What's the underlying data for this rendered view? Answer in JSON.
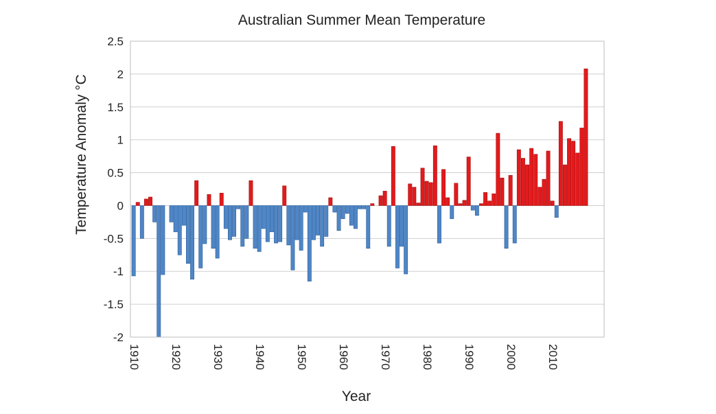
{
  "chart_data": {
    "type": "bar",
    "title": "Australian Summer Mean Temperature",
    "xlabel": "Year",
    "ylabel": "Temperature Anomaly °C",
    "ylim": [
      -2,
      2.5
    ],
    "yticks": [
      2.5,
      2,
      1.5,
      1,
      0.5,
      0,
      -0.5,
      -1,
      -1.5,
      -2
    ],
    "ytick_labels": [
      "2.5",
      "2",
      "1.5",
      "1",
      "0.5",
      "0",
      "-0.5",
      "-1",
      "-1.5",
      "-2"
    ],
    "xtick_labels": [
      "1910",
      "1920",
      "1930",
      "1940",
      "1950",
      "1960",
      "1970",
      "1980",
      "1990",
      "2000",
      "2010"
    ],
    "grid": true,
    "colors": {
      "positive": "#e31a1c",
      "negative": "#4f86c6"
    },
    "years": [
      1910,
      1911,
      1912,
      1913,
      1914,
      1915,
      1916,
      1917,
      1918,
      1919,
      1920,
      1921,
      1922,
      1923,
      1924,
      1925,
      1926,
      1927,
      1928,
      1929,
      1930,
      1931,
      1932,
      1933,
      1934,
      1935,
      1936,
      1937,
      1938,
      1939,
      1940,
      1941,
      1942,
      1943,
      1944,
      1945,
      1946,
      1947,
      1948,
      1949,
      1950,
      1951,
      1952,
      1953,
      1954,
      1955,
      1956,
      1957,
      1958,
      1959,
      1960,
      1961,
      1962,
      1963,
      1964,
      1965,
      1966,
      1967,
      1968,
      1969,
      1970,
      1971,
      1972,
      1973,
      1974,
      1975,
      1976,
      1977,
      1978,
      1979,
      1980,
      1981,
      1982,
      1983,
      1984,
      1985,
      1986,
      1987,
      1988,
      1989,
      1990,
      1991,
      1992,
      1993,
      1994,
      1995,
      1996,
      1997,
      1998,
      1999,
      2000,
      2001,
      2002,
      2003,
      2004,
      2005,
      2006,
      2007,
      2008,
      2009,
      2010,
      2011,
      2012,
      2013,
      2014,
      2015,
      2016,
      2017,
      2018,
      2019
    ],
    "values": [
      -1.07,
      0.05,
      -0.5,
      0.1,
      0.13,
      -0.25,
      -2.0,
      -1.05,
      0.0,
      -0.25,
      -0.4,
      -0.75,
      -0.3,
      -0.88,
      -1.12,
      0.38,
      -0.95,
      -0.58,
      0.17,
      -0.65,
      -0.8,
      0.19,
      -0.35,
      -0.52,
      -0.47,
      -0.05,
      -0.62,
      -0.5,
      0.38,
      -0.65,
      -0.7,
      -0.35,
      -0.55,
      -0.4,
      -0.57,
      -0.55,
      0.3,
      -0.6,
      -0.98,
      -0.52,
      -0.68,
      -0.1,
      -1.15,
      -0.52,
      -0.45,
      -0.62,
      -0.47,
      0.12,
      -0.1,
      -0.38,
      -0.2,
      -0.12,
      -0.3,
      -0.35,
      -0.05,
      -0.05,
      -0.65,
      0.03,
      0.0,
      0.15,
      0.22,
      -0.62,
      0.9,
      -0.95,
      -0.62,
      -1.04,
      0.33,
      0.28,
      0.04,
      0.57,
      0.37,
      0.35,
      0.91,
      -0.57,
      0.55,
      0.12,
      -0.2,
      0.34,
      0.03,
      0.08,
      0.74,
      -0.07,
      -0.15,
      0.03,
      0.2,
      0.07,
      0.18,
      1.1,
      0.42,
      -0.65,
      0.46,
      -0.57,
      0.85,
      0.72,
      0.62,
      0.87,
      0.78,
      0.28,
      0.4,
      0.83,
      0.07,
      -0.18,
      1.28,
      0.62,
      1.02,
      0.98,
      0.8,
      1.18,
      2.08,
      0.0
    ]
  }
}
